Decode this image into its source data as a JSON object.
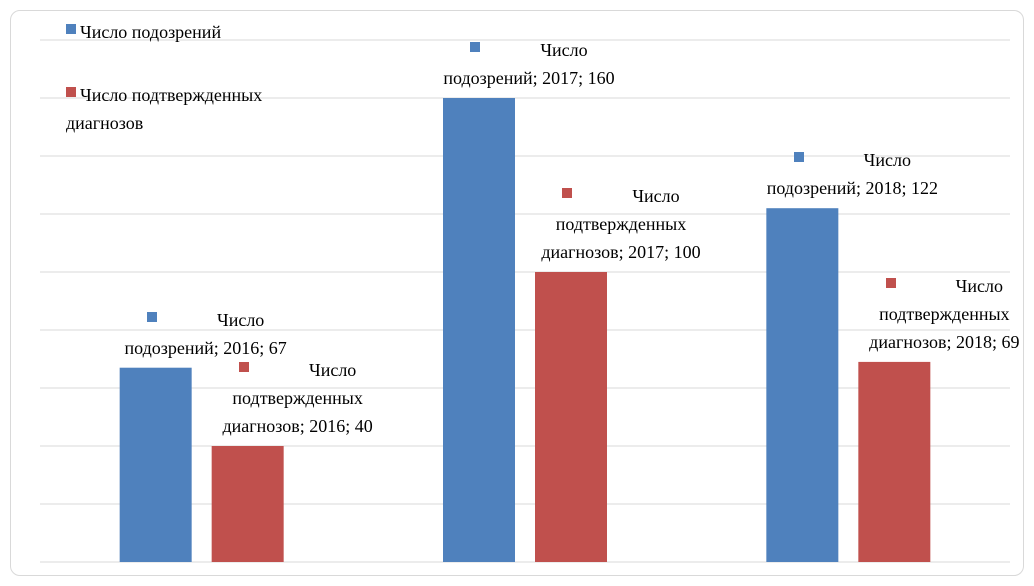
{
  "chart_data": {
    "type": "bar",
    "categories": [
      "2016",
      "2017",
      "2018"
    ],
    "series": [
      {
        "name": "Число подозрений",
        "color": "#4f81bd",
        "values": [
          67,
          160,
          122
        ],
        "value_labels": [
          "Число подозрений; 2016; 67",
          "Число подозрений; 2017; 160",
          "Число подозрений; 2018; 122"
        ]
      },
      {
        "name": "Число подтвержденных диагнозов",
        "color": "#c0504d",
        "values": [
          40,
          100,
          69
        ],
        "value_labels": [
          "Число подтвержденных диагнозов; 2016; 40",
          "Число подтвержденных диагнозов; 2017; 100",
          "Число подтвержденных диагнозов; 2018; 69"
        ]
      }
    ],
    "ylim": [
      0,
      180
    ],
    "yticks": [
      0,
      20,
      40,
      60,
      80,
      100,
      120,
      140,
      160,
      180
    ],
    "grid": true,
    "legend": "top-left"
  }
}
